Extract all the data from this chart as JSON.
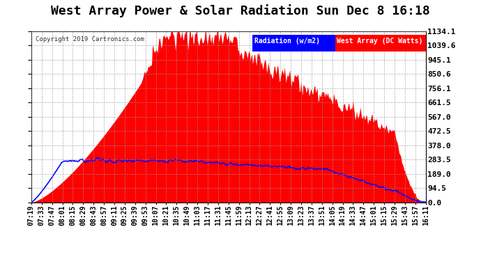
{
  "title": "West Array Power & Solar Radiation Sun Dec 8 16:18",
  "copyright": "Copyright 2019 Cartronics.com",
  "legend_labels": [
    "Radiation (w/m2)",
    "West Array (DC Watts)"
  ],
  "background_color": "#ffffff",
  "plot_bg_color": "#ffffff",
  "grid_color": "#999999",
  "y_ticks": [
    0.0,
    94.5,
    189.0,
    283.5,
    378.0,
    472.5,
    567.0,
    661.5,
    756.1,
    850.6,
    945.1,
    1039.6,
    1134.1
  ],
  "y_max": 1134.1,
  "y_min": 0.0,
  "x_tick_labels": [
    "07:19",
    "07:33",
    "07:47",
    "08:01",
    "08:15",
    "08:29",
    "08:43",
    "08:57",
    "09:11",
    "09:25",
    "09:39",
    "09:53",
    "10:07",
    "10:21",
    "10:35",
    "10:49",
    "11:03",
    "11:17",
    "11:31",
    "11:45",
    "11:59",
    "12:13",
    "12:27",
    "12:41",
    "12:55",
    "13:09",
    "13:23",
    "13:37",
    "13:51",
    "14:05",
    "14:19",
    "14:33",
    "14:47",
    "15:01",
    "15:15",
    "15:29",
    "15:43",
    "15:57",
    "16:11"
  ],
  "red_fill_color": "#ff0000",
  "blue_line_color": "#0000ff",
  "title_fontsize": 13,
  "tick_fontsize": 7
}
